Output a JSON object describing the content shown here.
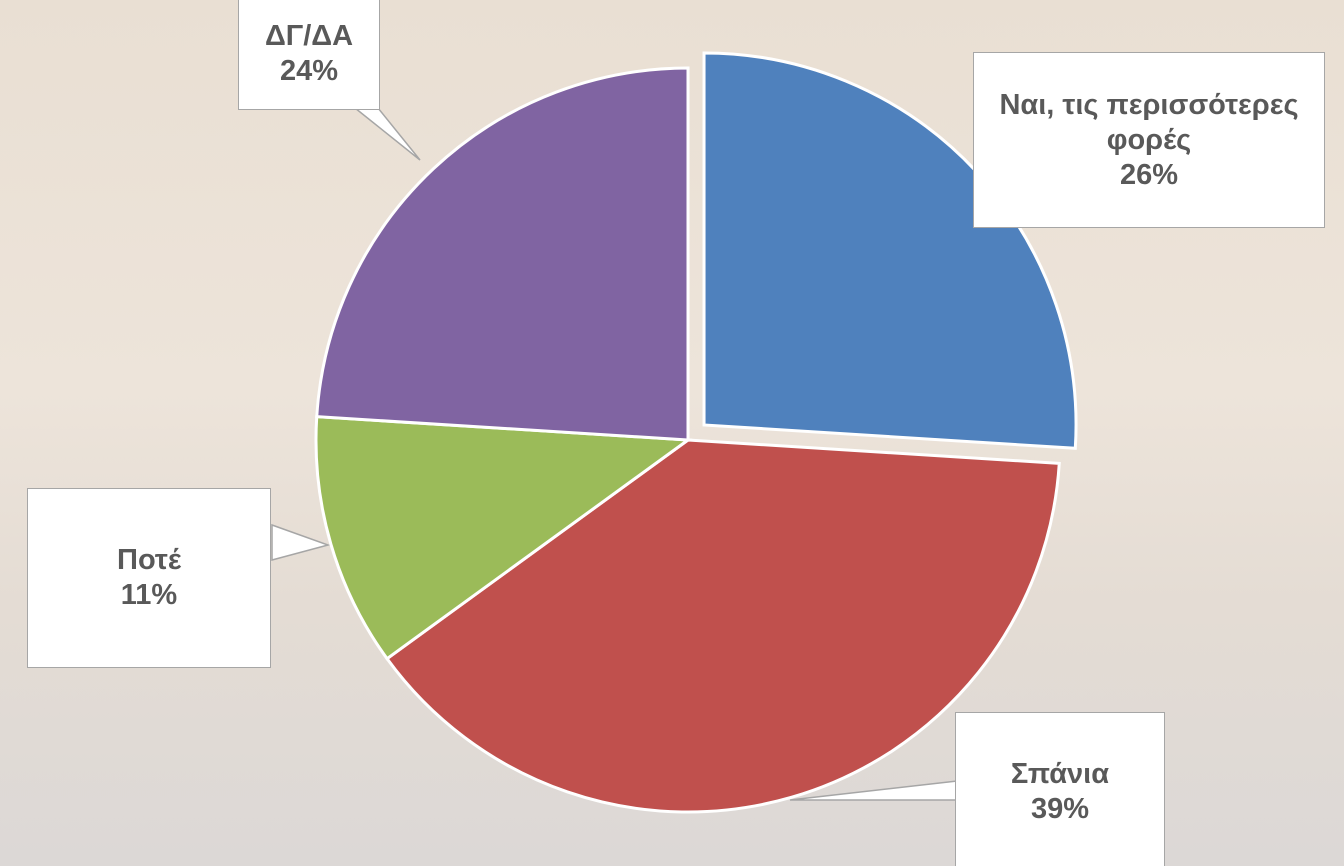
{
  "chart_data": {
    "type": "pie",
    "categories": [
      "Ναι, τις περισσότερες φορές",
      "Σπάνια",
      "Ποτέ",
      "ΔΓ/ΔΑ"
    ],
    "values": [
      26,
      39,
      11,
      24
    ],
    "value_labels": [
      "26%",
      "39%",
      "11%",
      "24%"
    ],
    "colors": [
      "#4f81bd",
      "#c0504d",
      "#9bbb59",
      "#8064a2"
    ]
  }
}
